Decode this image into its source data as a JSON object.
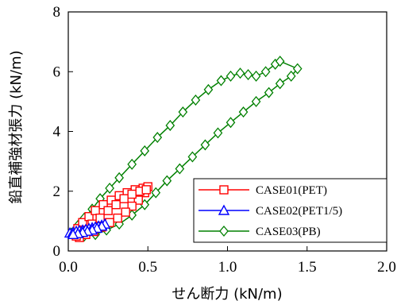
{
  "chart_data": {
    "type": "line",
    "xlabel": "せん断力 (kN/m)",
    "ylabel": "鉛直補強材張力 (kN/m)",
    "xlim": [
      0,
      2.0
    ],
    "ylim": [
      0,
      8
    ],
    "x_ticks": [
      "0.0",
      "0.5",
      "1.0",
      "1.5",
      "2.0"
    ],
    "y_ticks": [
      "0",
      "2",
      "4",
      "6",
      "8"
    ],
    "x_tick_values": [
      0,
      0.5,
      1.0,
      1.5,
      2.0
    ],
    "y_tick_values": [
      0,
      2,
      4,
      6,
      8
    ],
    "grid": false,
    "legend_position": "bottom-right",
    "series": [
      {
        "name": "CASE01(PET)",
        "color": "#ff0000",
        "marker": "square",
        "x": [
          0.03,
          0.06,
          0.09,
          0.13,
          0.17,
          0.22,
          0.27,
          0.32,
          0.37,
          0.42,
          0.47,
          0.5,
          0.48,
          0.44,
          0.4,
          0.36,
          0.31,
          0.26,
          0.21,
          0.16,
          0.11,
          0.07,
          0.05,
          0.1,
          0.15,
          0.2,
          0.25,
          0.3,
          0.35,
          0.4,
          0.45,
          0.49
        ],
        "y": [
          0.55,
          0.75,
          0.95,
          1.15,
          1.35,
          1.55,
          1.7,
          1.85,
          1.95,
          2.05,
          2.1,
          2.15,
          1.95,
          1.7,
          1.5,
          1.3,
          1.1,
          0.95,
          0.8,
          0.65,
          0.55,
          0.45,
          0.5,
          0.7,
          0.9,
          1.1,
          1.35,
          1.55,
          1.75,
          1.9,
          2.0,
          2.05
        ]
      },
      {
        "name": "CASE02(PET1/5)",
        "color": "#0000ff",
        "marker": "triangle",
        "x": [
          0.01,
          0.03,
          0.05,
          0.07,
          0.09,
          0.11,
          0.13,
          0.15,
          0.17,
          0.19,
          0.21,
          0.23,
          0.21,
          0.18,
          0.15,
          0.12,
          0.09,
          0.06,
          0.03
        ],
        "y": [
          0.6,
          0.63,
          0.66,
          0.68,
          0.7,
          0.72,
          0.75,
          0.78,
          0.8,
          0.83,
          0.86,
          0.9,
          0.83,
          0.76,
          0.7,
          0.66,
          0.62,
          0.58,
          0.55
        ]
      },
      {
        "name": "CASE03(PB)",
        "color": "#008000",
        "marker": "diamond",
        "x": [
          0.02,
          0.06,
          0.1,
          0.15,
          0.2,
          0.26,
          0.32,
          0.4,
          0.48,
          0.56,
          0.64,
          0.72,
          0.8,
          0.88,
          0.96,
          1.02,
          1.08,
          1.13,
          1.18,
          1.24,
          1.3,
          1.33,
          1.44,
          1.4,
          1.33,
          1.26,
          1.18,
          1.1,
          1.02,
          0.94,
          0.86,
          0.78,
          0.7,
          0.62,
          0.55,
          0.48,
          0.4,
          0.32,
          0.24,
          0.17,
          0.1
        ],
        "y": [
          0.6,
          0.85,
          1.1,
          1.4,
          1.75,
          2.1,
          2.45,
          2.9,
          3.35,
          3.8,
          4.2,
          4.65,
          5.05,
          5.4,
          5.7,
          5.85,
          5.95,
          5.9,
          5.85,
          6.0,
          6.25,
          6.35,
          6.1,
          5.85,
          5.6,
          5.3,
          5.0,
          4.65,
          4.3,
          3.95,
          3.55,
          3.15,
          2.75,
          2.35,
          1.95,
          1.55,
          1.2,
          0.9,
          0.7,
          0.55,
          0.5
        ]
      }
    ]
  }
}
